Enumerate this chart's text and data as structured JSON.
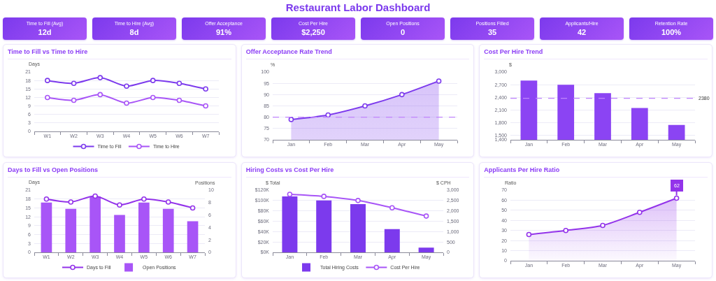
{
  "chart_data": [
    {
      "type": "other",
      "title": "Restaurant Labor Dashboard",
      "annotations": [
        "Time to Fill (Avg)",
        "12d",
        "Time to Hire (Avg)",
        "8d",
        "Offer Acceptance",
        "91%",
        "Cost Per Hire",
        "$2,250",
        "Open Positions",
        "0",
        "Positions Filled",
        "35",
        "Applicants/Hire",
        "42",
        "Retention Rate",
        "100%"
      ]
    },
    {
      "type": "line",
      "title": "Time to Fill vs Time to Hire",
      "ylabel": "Days",
      "categories": [
        "W1",
        "W2",
        "W3",
        "W4",
        "W5",
        "W6",
        "W7"
      ],
      "series": [
        {
          "name": "Time to Fill",
          "color": "#7c3aed",
          "values": [
            18,
            17,
            19,
            16,
            18,
            17,
            15
          ]
        },
        {
          "name": "Time to Hire",
          "color": "#a855f7",
          "values": [
            12,
            11,
            13,
            10,
            12,
            11,
            9
          ]
        }
      ],
      "ylim": [
        0,
        21
      ],
      "yticks": [
        0,
        3,
        6,
        9,
        12,
        15,
        18,
        21
      ],
      "grid": "y",
      "legend": "bottom",
      "marker": "circle"
    },
    {
      "type": "area",
      "title": "Offer Acceptance Rate Trend",
      "ylabel": "%",
      "categories": [
        "Jan",
        "Feb",
        "Mar",
        "Apr",
        "May"
      ],
      "values": [
        79,
        81,
        85,
        90,
        96
      ],
      "color": "#7c3aed",
      "ylim": [
        70,
        100
      ],
      "yticks": [
        70,
        75,
        80,
        85,
        90,
        95,
        100
      ],
      "grid": "y",
      "marker": "circle",
      "ref_lines": [
        {
          "axis": "y",
          "value": 80,
          "color": "#c084fc",
          "line_style": "dashed"
        }
      ]
    },
    {
      "type": "bar",
      "title": "Cost Per Hire Trend",
      "ylabel": "$",
      "categories": [
        "Jan",
        "Feb",
        "Mar",
        "Apr",
        "May"
      ],
      "values": [
        2800,
        2700,
        2500,
        2150,
        1750
      ],
      "color": "#8b44f3",
      "ylim": [
        1400,
        3000
      ],
      "yticks": [
        {
          "value": 1400,
          "label": "1,400"
        },
        {
          "value": 1500,
          "label": "1,500"
        },
        {
          "value": 1800,
          "label": "1,800"
        },
        {
          "value": 2100,
          "label": "2,100"
        },
        {
          "value": 2400,
          "label": "2,400"
        },
        {
          "value": 2700,
          "label": "2,700"
        },
        {
          "value": 3000,
          "label": "3,000"
        }
      ],
      "grid": "y",
      "ref_lines": [
        {
          "axis": "y",
          "value": 2380,
          "label": "2380",
          "color": "#c084fc",
          "line_style": "dashed"
        }
      ]
    },
    {
      "type": "bar",
      "title": "Days to Fill vs Open Positions",
      "ylabel": "Days",
      "y2label": "Positions",
      "categories": [
        "W1",
        "W2",
        "W3",
        "W4",
        "W5",
        "W6",
        "W7"
      ],
      "series": [
        {
          "name": "Days to Fill",
          "type": "line",
          "color": "#9333ea",
          "values": [
            18,
            17,
            19,
            16,
            18,
            17,
            15
          ]
        },
        {
          "name": "Open Positions",
          "type": "bar",
          "axis": "y2",
          "color": "#a855f7",
          "values": [
            8,
            7,
            9,
            6,
            8,
            7,
            5
          ]
        }
      ],
      "ylim": [
        0,
        21
      ],
      "yticks": [
        0,
        3,
        6,
        9,
        12,
        15,
        18,
        21
      ],
      "y2lim": [
        0,
        10
      ],
      "y2ticks": [
        0,
        2,
        4,
        6,
        8,
        10
      ],
      "grid": "y",
      "legend": "bottom",
      "marker": "circle"
    },
    {
      "type": "bar",
      "title": "Hiring Costs vs Cost Per Hire",
      "ylabel": "$ Total",
      "y2label": "$ CPH",
      "categories": [
        "Jan",
        "Feb",
        "Mar",
        "Apr",
        "May"
      ],
      "series": [
        {
          "name": "Total Hiring Costs",
          "type": "bar",
          "color": "#7c3aed",
          "values": [
            108000,
            100000,
            93000,
            45000,
            9000
          ]
        },
        {
          "name": "Cost Per Hire",
          "type": "line",
          "axis": "y2",
          "color": "#a855f7",
          "values": [
            2800,
            2700,
            2500,
            2150,
            1750
          ]
        }
      ],
      "ylim": [
        0,
        120000
      ],
      "yticks": [
        {
          "value": 0,
          "label": "$0K"
        },
        {
          "value": 20000,
          "label": "$20K"
        },
        {
          "value": 40000,
          "label": "$40K"
        },
        {
          "value": 60000,
          "label": "$60K"
        },
        {
          "value": 80000,
          "label": "$80K"
        },
        {
          "value": 100000,
          "label": "$100K"
        },
        {
          "value": 120000,
          "label": "$120K"
        }
      ],
      "y2lim": [
        0,
        3000
      ],
      "y2ticks": [
        0,
        500,
        {
          "value": 1000,
          "label": "1,000"
        },
        {
          "value": 1500,
          "label": "1,500"
        },
        {
          "value": 2000,
          "label": "2,000"
        },
        {
          "value": 2500,
          "label": "2,500"
        },
        {
          "value": 3000,
          "label": "3,000"
        }
      ],
      "grid": "y",
      "legend": "bottom",
      "marker": "circle"
    },
    {
      "type": "area",
      "title": "Applicants Per Hire Ratio",
      "ylabel": "Ratio",
      "categories": [
        "Jan",
        "Feb",
        "Mar",
        "Apr",
        "May"
      ],
      "values": [
        26,
        30,
        35,
        48,
        62
      ],
      "color": "#9333ea",
      "ylim": [
        0,
        70
      ],
      "yticks": [
        0,
        10,
        20,
        30,
        40,
        50,
        60,
        70
      ],
      "grid": "y",
      "marker": "circle",
      "annotations": [
        {
          "text": "62",
          "x": "May",
          "y": 62
        }
      ]
    }
  ]
}
